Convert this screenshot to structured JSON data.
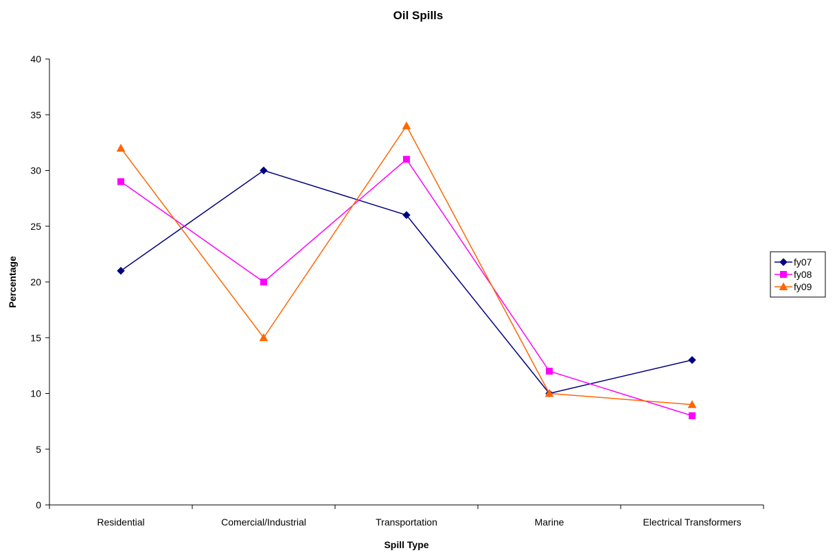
{
  "chart_data": {
    "type": "line",
    "title": "Oil Spills",
    "xlabel": "Spill Type",
    "ylabel": "Percentage",
    "categories": [
      "Residential",
      "Comercial/Industrial",
      "Transportation",
      "Marine",
      "Electrical Transformers"
    ],
    "ylim": [
      0,
      40
    ],
    "yticks": [
      0,
      5,
      10,
      15,
      20,
      25,
      30,
      35,
      40
    ],
    "grid": false,
    "legend_position": "right",
    "series": [
      {
        "name": "fy07",
        "values": [
          21,
          30,
          26,
          10,
          13
        ],
        "color": "#000080",
        "marker": "diamond"
      },
      {
        "name": "fy08",
        "values": [
          29,
          20,
          31,
          12,
          8
        ],
        "color": "#FF00FF",
        "marker": "square"
      },
      {
        "name": "fy09",
        "values": [
          32,
          15,
          34,
          10,
          9
        ],
        "color": "#FF6600",
        "marker": "triangle"
      }
    ]
  }
}
